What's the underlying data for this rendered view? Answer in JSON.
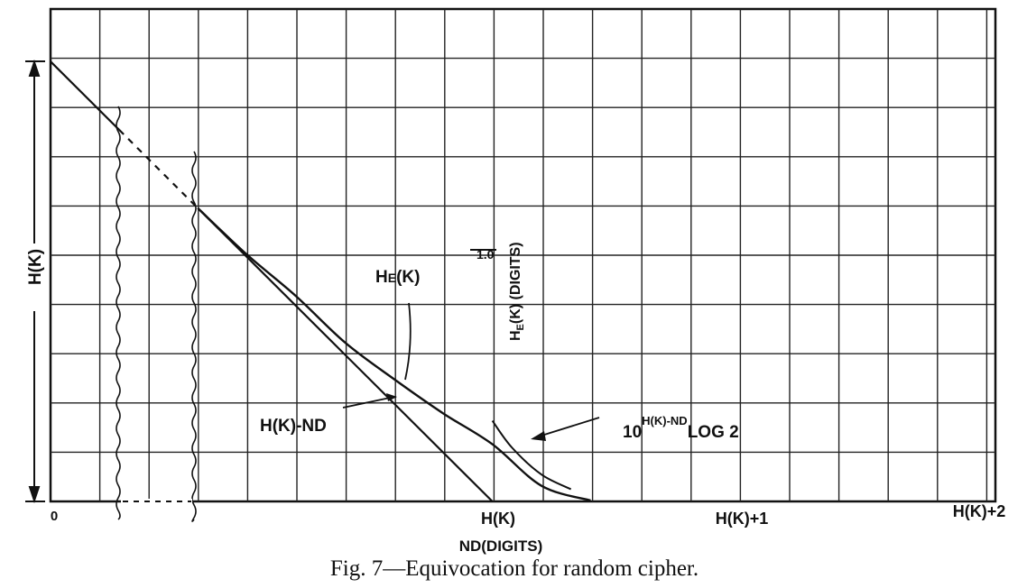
{
  "chart_data": {
    "type": "line",
    "caption": "Fig. 7—Equivocation for random cipher.",
    "xlabel": "ND(DIGITS)",
    "ylabel": "H(K)",
    "y2label": "HE(K) (DIGITS)",
    "y2label_main": "H",
    "y2label_sub": "E",
    "y2label_rest": "(K) (DIGITS)",
    "x_ticks": [
      {
        "label": "0",
        "value": 0
      },
      {
        "label": "H(K)",
        "value": 9
      },
      {
        "label": "H(K)+1",
        "value": 10
      },
      {
        "label": "H(K)+2",
        "value": 11
      }
    ],
    "y_marker": {
      "label": "1.0",
      "value": 1.0
    },
    "axis_break": true,
    "grid": true,
    "series": [
      {
        "name": "HE(K)",
        "name_main": "H",
        "name_sub": "E",
        "name_rest": "(K)",
        "x": [
          0,
          3,
          4,
          5,
          6,
          7,
          8,
          9,
          10,
          11
        ],
        "y": [
          9,
          6,
          5.05,
          4.2,
          3.25,
          2.5,
          1.8,
          1.17,
          0.32,
          0.02
        ]
      },
      {
        "name": "H(K)-ND",
        "x": [
          0,
          9
        ],
        "y": [
          9,
          0
        ]
      },
      {
        "name": "10^(H(K)-ND) LOG 2",
        "name_main": "10",
        "name_sup": "H(K)-ND",
        "name_rest": "LOG 2",
        "x": [
          9.0,
          9.4,
          10.0,
          10.6
        ],
        "y": [
          1.65,
          1.1,
          0.55,
          0.25
        ]
      }
    ]
  }
}
